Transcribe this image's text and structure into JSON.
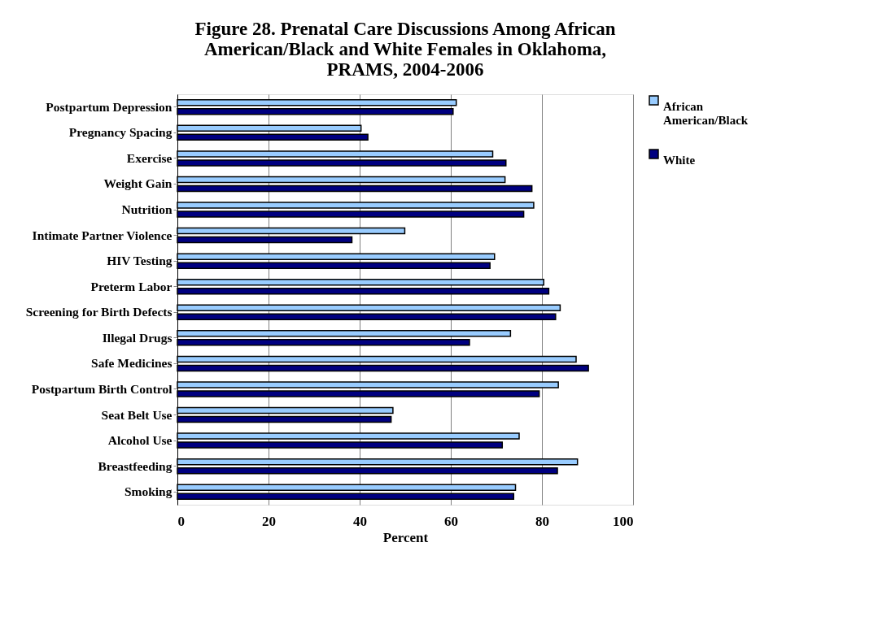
{
  "chart_data": {
    "type": "bar",
    "orientation": "horizontal",
    "title": [
      "Figure 28.  Prenatal Care Discussions Among African",
      "American/Black and White Females in Oklahoma,",
      "PRAMS, 2004-2006"
    ],
    "categories": [
      "Postpartum Depression",
      "Pregnancy Spacing",
      "Exercise",
      "Weight Gain",
      "Nutrition",
      "Intimate Partner Violence",
      "HIV Testing",
      "Preterm Labor",
      "Screening for Birth Defects",
      "Illegal Drugs",
      "Safe Medicines",
      "Postpartum  Birth Control",
      "Seat Belt Use",
      "Alcohol Use",
      "Breastfeeding",
      "Smoking"
    ],
    "series": [
      {
        "name": "African American/Black",
        "color": "#99ccff",
        "values": [
          61.2,
          40.3,
          69.2,
          71.9,
          78.2,
          49.9,
          69.6,
          80.4,
          84.0,
          73.1,
          87.5,
          83.6,
          47.3,
          75.0,
          87.8,
          74.2
        ]
      },
      {
        "name": "White",
        "color": "#000080",
        "values": [
          60.5,
          41.8,
          72.1,
          77.8,
          76.0,
          38.3,
          68.6,
          81.5,
          83.0,
          64.1,
          90.2,
          79.4,
          46.9,
          71.3,
          83.4,
          73.8
        ]
      }
    ],
    "xlabel": "Percent",
    "xlim": [
      0,
      100
    ],
    "xticks": [
      0,
      20,
      40,
      60,
      80,
      100
    ],
    "grid": "x",
    "legend": "right"
  }
}
